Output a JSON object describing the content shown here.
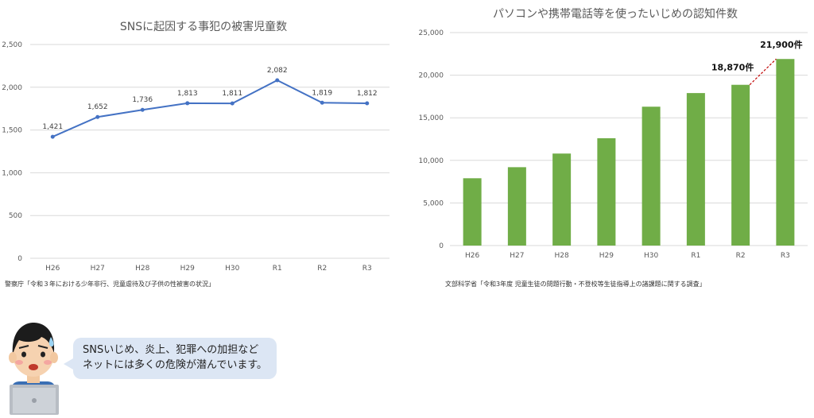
{
  "chart_data": [
    {
      "type": "line",
      "title": "SNSに起因する事犯の被害児童数",
      "categories": [
        "H26",
        "H27",
        "H28",
        "H29",
        "H30",
        "R1",
        "R2",
        "R3"
      ],
      "values": [
        1421,
        1652,
        1736,
        1813,
        1811,
        2082,
        1819,
        1812
      ],
      "data_labels": [
        "1,421",
        "1,652",
        "1,736",
        "1,813",
        "1,811",
        "2,082",
        "1,819",
        "1,812"
      ],
      "ylim": [
        0,
        2500
      ],
      "yticks": [
        "0",
        "500",
        "1,000",
        "1,500",
        "2,000",
        "2,500"
      ],
      "grid": true,
      "color": "#4472c4",
      "source": "警察庁「令和３年における少年非行、児童虐待及び子供の性被害の状況」"
    },
    {
      "type": "bar",
      "title": "パソコンや携帯電話等を使ったいじめの認知件数",
      "categories": [
        "H26",
        "H27",
        "H28",
        "H29",
        "H30",
        "R1",
        "R2",
        "R3"
      ],
      "values": [
        7900,
        9200,
        10800,
        12600,
        16300,
        17900,
        18870,
        21900
      ],
      "ylim": [
        0,
        25000
      ],
      "yticks": [
        "0",
        "5,000",
        "10,000",
        "15,000",
        "20,000",
        "25,000"
      ],
      "grid": true,
      "color": "#70ad47",
      "annotations": [
        "18,870件",
        "21,900件"
      ],
      "annotation_color": "#c00000",
      "source": "文部科学省「令和3年度 児童生徒の問題行動・不登校等生徒指導上の諸課題に関する調査」"
    }
  ],
  "bubble": {
    "line1": "SNSいじめ、炎上、犯罪への加担など",
    "line2": "ネットには多くの危険が潜んでいます。"
  }
}
